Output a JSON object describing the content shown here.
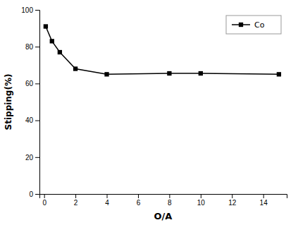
{
  "chart_data": {
    "type": "line",
    "x": [
      0.1,
      0.5,
      1.0,
      2.0,
      4.0,
      8.0,
      10.0,
      15.0
    ],
    "series": [
      {
        "name": "Co",
        "color": "#000000",
        "marker": "square",
        "values": [
          91,
          83,
          77,
          68,
          65,
          65.5,
          65.5,
          65
        ]
      }
    ],
    "xlabel": "O/A",
    "ylabel": "Stipping(%)",
    "xlim": [
      -0.3,
      15.5
    ],
    "ylim": [
      0,
      100
    ],
    "xticks": [
      0,
      2,
      4,
      6,
      8,
      10,
      12,
      14
    ],
    "yticks": [
      0,
      20,
      40,
      60,
      80,
      100
    ],
    "grid": false,
    "legend": "upper right"
  }
}
